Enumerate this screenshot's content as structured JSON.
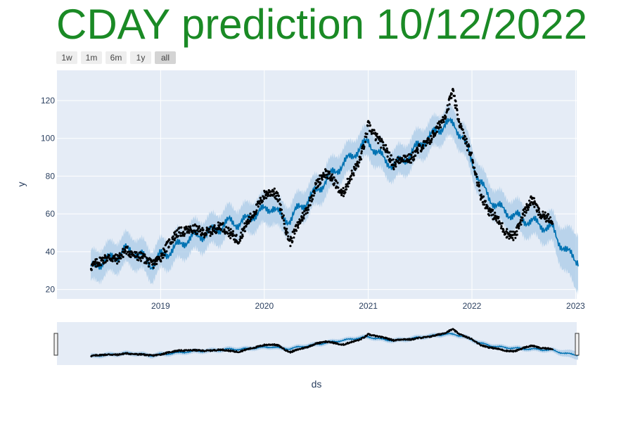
{
  "title": "CDAY prediction 10/12/2022",
  "colors": {
    "title": "#1a8a25",
    "plot_bg": "#e5ecf6",
    "grid": "#ffffff",
    "band": "#aacbe7",
    "trend": "#0072b2",
    "points": "#000000",
    "axis_text": "#2a3f5f"
  },
  "range_selector": {
    "buttons": [
      "1w",
      "1m",
      "6m",
      "1y",
      "all"
    ],
    "active": "all"
  },
  "chart_data": {
    "type": "line",
    "xlabel": "ds",
    "ylabel": "y",
    "x_range": [
      "2018-01-01",
      "2023-01-05"
    ],
    "ylim": [
      15,
      136
    ],
    "x_ticks": [
      "2019",
      "2020",
      "2021",
      "2022",
      "2023"
    ],
    "y_ticks": [
      20,
      40,
      60,
      80,
      100,
      120
    ],
    "grid": true,
    "rangeslider": true,
    "history_end": "2022-10-12",
    "forecast_end": "2023-01-10",
    "band_halfwidth": 8,
    "series": [
      {
        "name": "yhat",
        "style": "line",
        "x": [
          "2018-04-30",
          "2018-06-01",
          "2018-07-01",
          "2018-08-01",
          "2018-09-01",
          "2018-10-01",
          "2018-11-01",
          "2018-12-01",
          "2019-01-01",
          "2019-02-01",
          "2019-03-01",
          "2019-04-01",
          "2019-05-01",
          "2019-06-01",
          "2019-07-01",
          "2019-08-01",
          "2019-09-01",
          "2019-10-01",
          "2019-11-01",
          "2019-12-01",
          "2020-01-01",
          "2020-02-01",
          "2020-03-01",
          "2020-04-01",
          "2020-05-01",
          "2020-06-01",
          "2020-07-01",
          "2020-08-01",
          "2020-09-01",
          "2020-10-01",
          "2020-11-01",
          "2020-12-01",
          "2021-01-01",
          "2021-02-01",
          "2021-03-01",
          "2021-04-01",
          "2021-05-01",
          "2021-06-01",
          "2021-07-01",
          "2021-08-01",
          "2021-09-01",
          "2021-10-01",
          "2021-11-01",
          "2021-12-01",
          "2022-01-01",
          "2022-02-01",
          "2022-03-01",
          "2022-04-01",
          "2022-05-01",
          "2022-06-01",
          "2022-07-01",
          "2022-08-01",
          "2022-09-01",
          "2022-10-12",
          "2022-11-01",
          "2022-12-01",
          "2023-01-01"
        ],
        "y": [
          31,
          34,
          36,
          38,
          41,
          40,
          37,
          33,
          38,
          40,
          43,
          46,
          48,
          49,
          51,
          53,
          56,
          55,
          57,
          60,
          62,
          64,
          58,
          57,
          63,
          67,
          72,
          77,
          82,
          86,
          90,
          95,
          98,
          93,
          88,
          86,
          88,
          92,
          97,
          100,
          104,
          108,
          107,
          100,
          88,
          76,
          69,
          64,
          61,
          59,
          57,
          56,
          54,
          52,
          46,
          40,
          36
        ]
      },
      {
        "name": "y",
        "style": "markers",
        "x": [
          "2018-05-01",
          "2018-06-01",
          "2018-07-01",
          "2018-08-01",
          "2018-09-01",
          "2018-10-01",
          "2018-11-01",
          "2018-12-01",
          "2019-01-01",
          "2019-02-01",
          "2019-03-01",
          "2019-04-01",
          "2019-05-01",
          "2019-06-01",
          "2019-07-01",
          "2019-08-01",
          "2019-09-01",
          "2019-10-01",
          "2019-11-01",
          "2019-12-01",
          "2020-01-01",
          "2020-02-01",
          "2020-02-20",
          "2020-03-20",
          "2020-04-01",
          "2020-05-01",
          "2020-06-01",
          "2020-07-01",
          "2020-08-01",
          "2020-09-01",
          "2020-10-01",
          "2020-11-01",
          "2020-12-01",
          "2020-12-20",
          "2021-01-01",
          "2021-02-01",
          "2021-03-01",
          "2021-04-01",
          "2021-05-01",
          "2021-06-01",
          "2021-07-01",
          "2021-08-01",
          "2021-09-01",
          "2021-10-01",
          "2021-10-25",
          "2021-11-15",
          "2021-12-01",
          "2022-01-01",
          "2022-02-01",
          "2022-03-01",
          "2022-04-01",
          "2022-05-01",
          "2022-06-01",
          "2022-07-01",
          "2022-08-01",
          "2022-08-20",
          "2022-09-01",
          "2022-10-12"
        ],
        "y": [
          32,
          35,
          37,
          36,
          41,
          38,
          37,
          33,
          37,
          45,
          50,
          51,
          52,
          50,
          51,
          54,
          50,
          46,
          55,
          62,
          70,
          72,
          68,
          50,
          45,
          55,
          63,
          75,
          82,
          78,
          70,
          80,
          88,
          98,
          107,
          100,
          95,
          86,
          90,
          89,
          95,
          98,
          105,
          113,
          125,
          110,
          102,
          90,
          70,
          62,
          57,
          50,
          48,
          60,
          68,
          62,
          59,
          57
        ]
      }
    ]
  }
}
